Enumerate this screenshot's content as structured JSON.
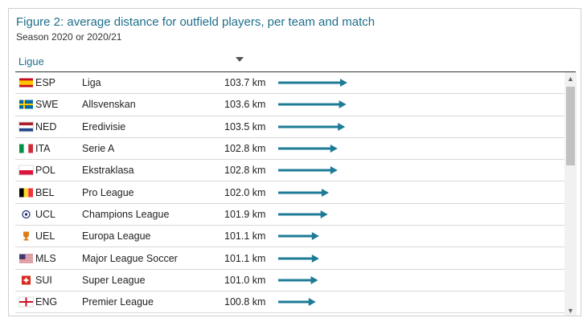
{
  "header": {
    "title": "Figure 2: average distance for outfield players, per team and match",
    "subtitle": "Season 2020 or 2020/21",
    "column_label": "Ligue"
  },
  "chart_data": {
    "type": "bar",
    "title": "Figure 2: average distance for outfield players, per team and match",
    "subtitle": "Season 2020 or 2020/21",
    "xlabel": "",
    "ylabel": "",
    "unit": "km",
    "value_range": [
      100.0,
      104.0
    ],
    "arrow_color": "#1e7b96",
    "rows": [
      {
        "code": "ESP",
        "league": "Liga",
        "value": 103.7,
        "label": "103.7 km",
        "flag": "spain-flag"
      },
      {
        "code": "SWE",
        "league": "Allsvenskan",
        "value": 103.6,
        "label": "103.6 km",
        "flag": "sweden-flag"
      },
      {
        "code": "NED",
        "league": "Eredivisie",
        "value": 103.5,
        "label": "103.5 km",
        "flag": "netherlands-flag"
      },
      {
        "code": "ITA",
        "league": "Serie A",
        "value": 102.8,
        "label": "102.8 km",
        "flag": "italy-flag"
      },
      {
        "code": "POL",
        "league": "Ekstraklasa",
        "value": 102.8,
        "label": "102.8 km",
        "flag": "poland-flag"
      },
      {
        "code": "BEL",
        "league": "Pro League",
        "value": 102.0,
        "label": "102.0 km",
        "flag": "belgium-flag"
      },
      {
        "code": "UCL",
        "league": "Champions League",
        "value": 101.9,
        "label": "101.9 km",
        "flag": "ucl-logo"
      },
      {
        "code": "UEL",
        "league": "Europa League",
        "value": 101.1,
        "label": "101.1 km",
        "flag": "uel-logo"
      },
      {
        "code": "MLS",
        "league": "Major League Soccer",
        "value": 101.1,
        "label": "101.1 km",
        "flag": "usa-flag"
      },
      {
        "code": "SUI",
        "league": "Super League",
        "value": 101.0,
        "label": "101.0 km",
        "flag": "switzerland-flag"
      },
      {
        "code": "ENG",
        "league": "Premier League",
        "value": 100.8,
        "label": "100.8 km",
        "flag": "england-flag"
      }
    ]
  },
  "icons": {
    "sort": "sort-descending-icon",
    "scroll_up": "▲",
    "scroll_down": "▼"
  }
}
